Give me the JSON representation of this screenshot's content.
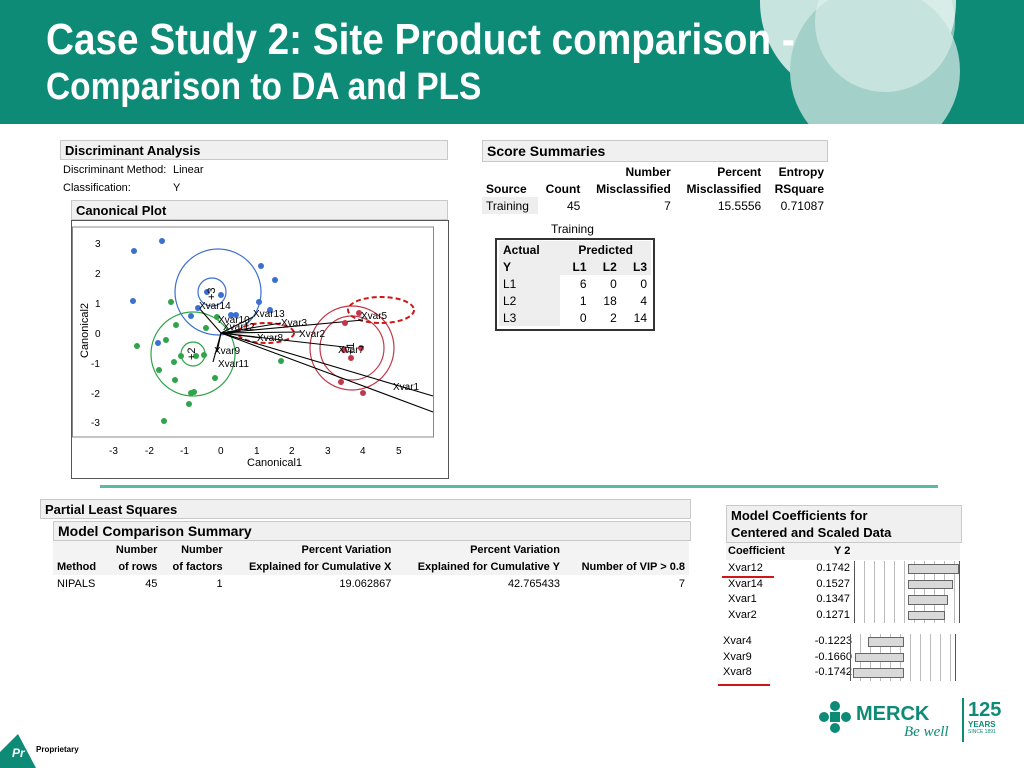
{
  "slide": {
    "title_line1": "Case Study 2: Site Product comparison -",
    "title_line2": "Comparison to DA and PLS",
    "accent_color": "#0e8b77"
  },
  "discriminant": {
    "header": "Discriminant Analysis",
    "method_label": "Discriminant Method:",
    "method_value": "Linear",
    "classification_label": "Classification:",
    "classification_value": "Y"
  },
  "canonical_plot": {
    "header": "Canonical Plot",
    "xlabel": "Canonical1",
    "ylabel": "Canonical2"
  },
  "score_summaries": {
    "header": "Score Summaries",
    "col_headers": [
      [
        "",
        "",
        "Number",
        "Percent",
        "Entropy"
      ],
      [
        "Source",
        "Count",
        "Misclassified",
        "Misclassified",
        "RSquare"
      ]
    ],
    "row": [
      "Training",
      "45",
      "7",
      "15.5556",
      "0.71087"
    ]
  },
  "confusion": {
    "caption": "Training",
    "actual_label": "Actual",
    "predicted_label": "Predicted",
    "y_label": "Y",
    "cols": [
      "L1",
      "L2",
      "L3"
    ],
    "rows": [
      {
        "label": "L1",
        "values": [
          "6",
          "0",
          "0"
        ]
      },
      {
        "label": "L2",
        "values": [
          "1",
          "18",
          "4"
        ]
      },
      {
        "label": "L3",
        "values": [
          "0",
          "2",
          "14"
        ]
      }
    ]
  },
  "pls": {
    "header": "Partial Least Squares",
    "model_comparison_header": "Model Comparison Summary",
    "col_headers": [
      [
        "",
        "Number",
        "Number",
        "Percent Variation",
        "Percent Variation",
        ""
      ],
      [
        "Method",
        "of rows",
        "of factors",
        "Explained for Cumulative X",
        "Explained for Cumulative Y",
        "Number of VIP > 0.8"
      ]
    ],
    "row": [
      "NIPALS",
      "45",
      "1",
      "19.062867",
      "42.765433",
      "7"
    ]
  },
  "coefficients": {
    "header_line1": "Model Coefficients for",
    "header_line2": "Centered and Scaled Data",
    "col_coef": "Coefficient",
    "col_y": "Y 2",
    "positive": [
      {
        "name": "Xvar12",
        "value": "0.1742",
        "num": 0.1742
      },
      {
        "name": "Xvar14",
        "value": "0.1527",
        "num": 0.1527
      },
      {
        "name": "Xvar1",
        "value": "0.1347",
        "num": 0.1347
      },
      {
        "name": "Xvar2",
        "value": "0.1271",
        "num": 0.1271
      }
    ],
    "negative": [
      {
        "name": "Xvar4",
        "value": "-0.1223",
        "num": -0.1223
      },
      {
        "name": "Xvar9",
        "value": "-0.1660",
        "num": -0.166
      },
      {
        "name": "Xvar8",
        "value": "-0.1742",
        "num": -0.1742
      }
    ]
  },
  "footer": {
    "logo_badge": "Pr",
    "proprietary": "Proprietary",
    "merck": "MERCK",
    "be_well": "Be well",
    "years_num": "125",
    "years_word": "YEARS",
    "since": "SINCE 1891"
  }
}
